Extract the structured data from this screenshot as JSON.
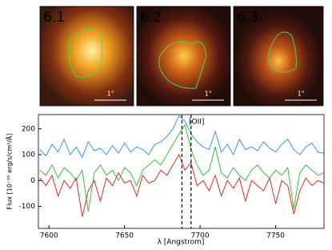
{
  "panels": [
    {
      "label": "6.1",
      "color": "#3a9ad9",
      "scale": "1\""
    },
    {
      "label": "6.2",
      "color": "#3dbf3d",
      "scale": "1\""
    },
    {
      "label": "6.3",
      "color": "#d83030",
      "scale": "1\""
    }
  ],
  "chart_data": {
    "type": "line",
    "x_label": "λ [Angstrom]",
    "y_label": "Flux [10⁻²⁰ erg/s/cm²/Å]",
    "annotation": "[OII]",
    "x": [
      7594,
      7598,
      7602,
      7606,
      7610,
      7614,
      7618,
      7622,
      7626,
      7630,
      7634,
      7638,
      7642,
      7646,
      7650,
      7654,
      7658,
      7662,
      7666,
      7670,
      7674,
      7678,
      7682,
      7686,
      7690,
      7694,
      7698,
      7702,
      7706,
      7710,
      7714,
      7718,
      7722,
      7726,
      7730,
      7734,
      7738,
      7742,
      7746,
      7750,
      7754,
      7758,
      7762,
      7766,
      7770,
      7774,
      7778,
      7782
    ],
    "series": [
      {
        "name": "6.1",
        "color": "#3a9ad9",
        "values": [
          120,
          95,
          140,
          110,
          160,
          100,
          130,
          90,
          150,
          115,
          125,
          100,
          135,
          105,
          145,
          110,
          130,
          120,
          100,
          140,
          150,
          170,
          200,
          250,
          230,
          180,
          150,
          130,
          120,
          190,
          110,
          140,
          100,
          160,
          120,
          130,
          115,
          150,
          125,
          110,
          140,
          160,
          120,
          100,
          130,
          145,
          110,
          105
        ]
      },
      {
        "name": "6.2",
        "color": "#3dbf3d",
        "values": [
          40,
          20,
          60,
          10,
          50,
          30,
          0,
          40,
          -120,
          30,
          60,
          20,
          40,
          0,
          50,
          30,
          -20,
          40,
          60,
          80,
          60,
          100,
          140,
          180,
          215,
          120,
          60,
          20,
          40,
          130,
          30,
          10,
          50,
          20,
          0,
          40,
          60,
          30,
          10,
          40,
          20,
          50,
          -110,
          30,
          60,
          40,
          20,
          30
        ]
      },
      {
        "name": "6.3",
        "color": "#d83030",
        "values": [
          10,
          -20,
          20,
          -60,
          0,
          -30,
          10,
          -140,
          -40,
          0,
          -80,
          10,
          -20,
          30,
          -10,
          0,
          -60,
          20,
          -10,
          0,
          40,
          20,
          60,
          100,
          40,
          70,
          -20,
          0,
          -40,
          20,
          -60,
          0,
          -30,
          10,
          -80,
          0,
          -20,
          -40,
          10,
          -90,
          0,
          -20,
          -130,
          -40,
          10,
          -20,
          0,
          -10
        ]
      }
    ],
    "vlines": [
      7688,
      7694
    ],
    "xlim": [
      7593,
      7782
    ],
    "ylim": [
      -185,
      255
    ],
    "xticks": [
      7600,
      7650,
      7700,
      7750
    ],
    "yticks": [
      -100,
      0,
      100,
      200
    ]
  }
}
